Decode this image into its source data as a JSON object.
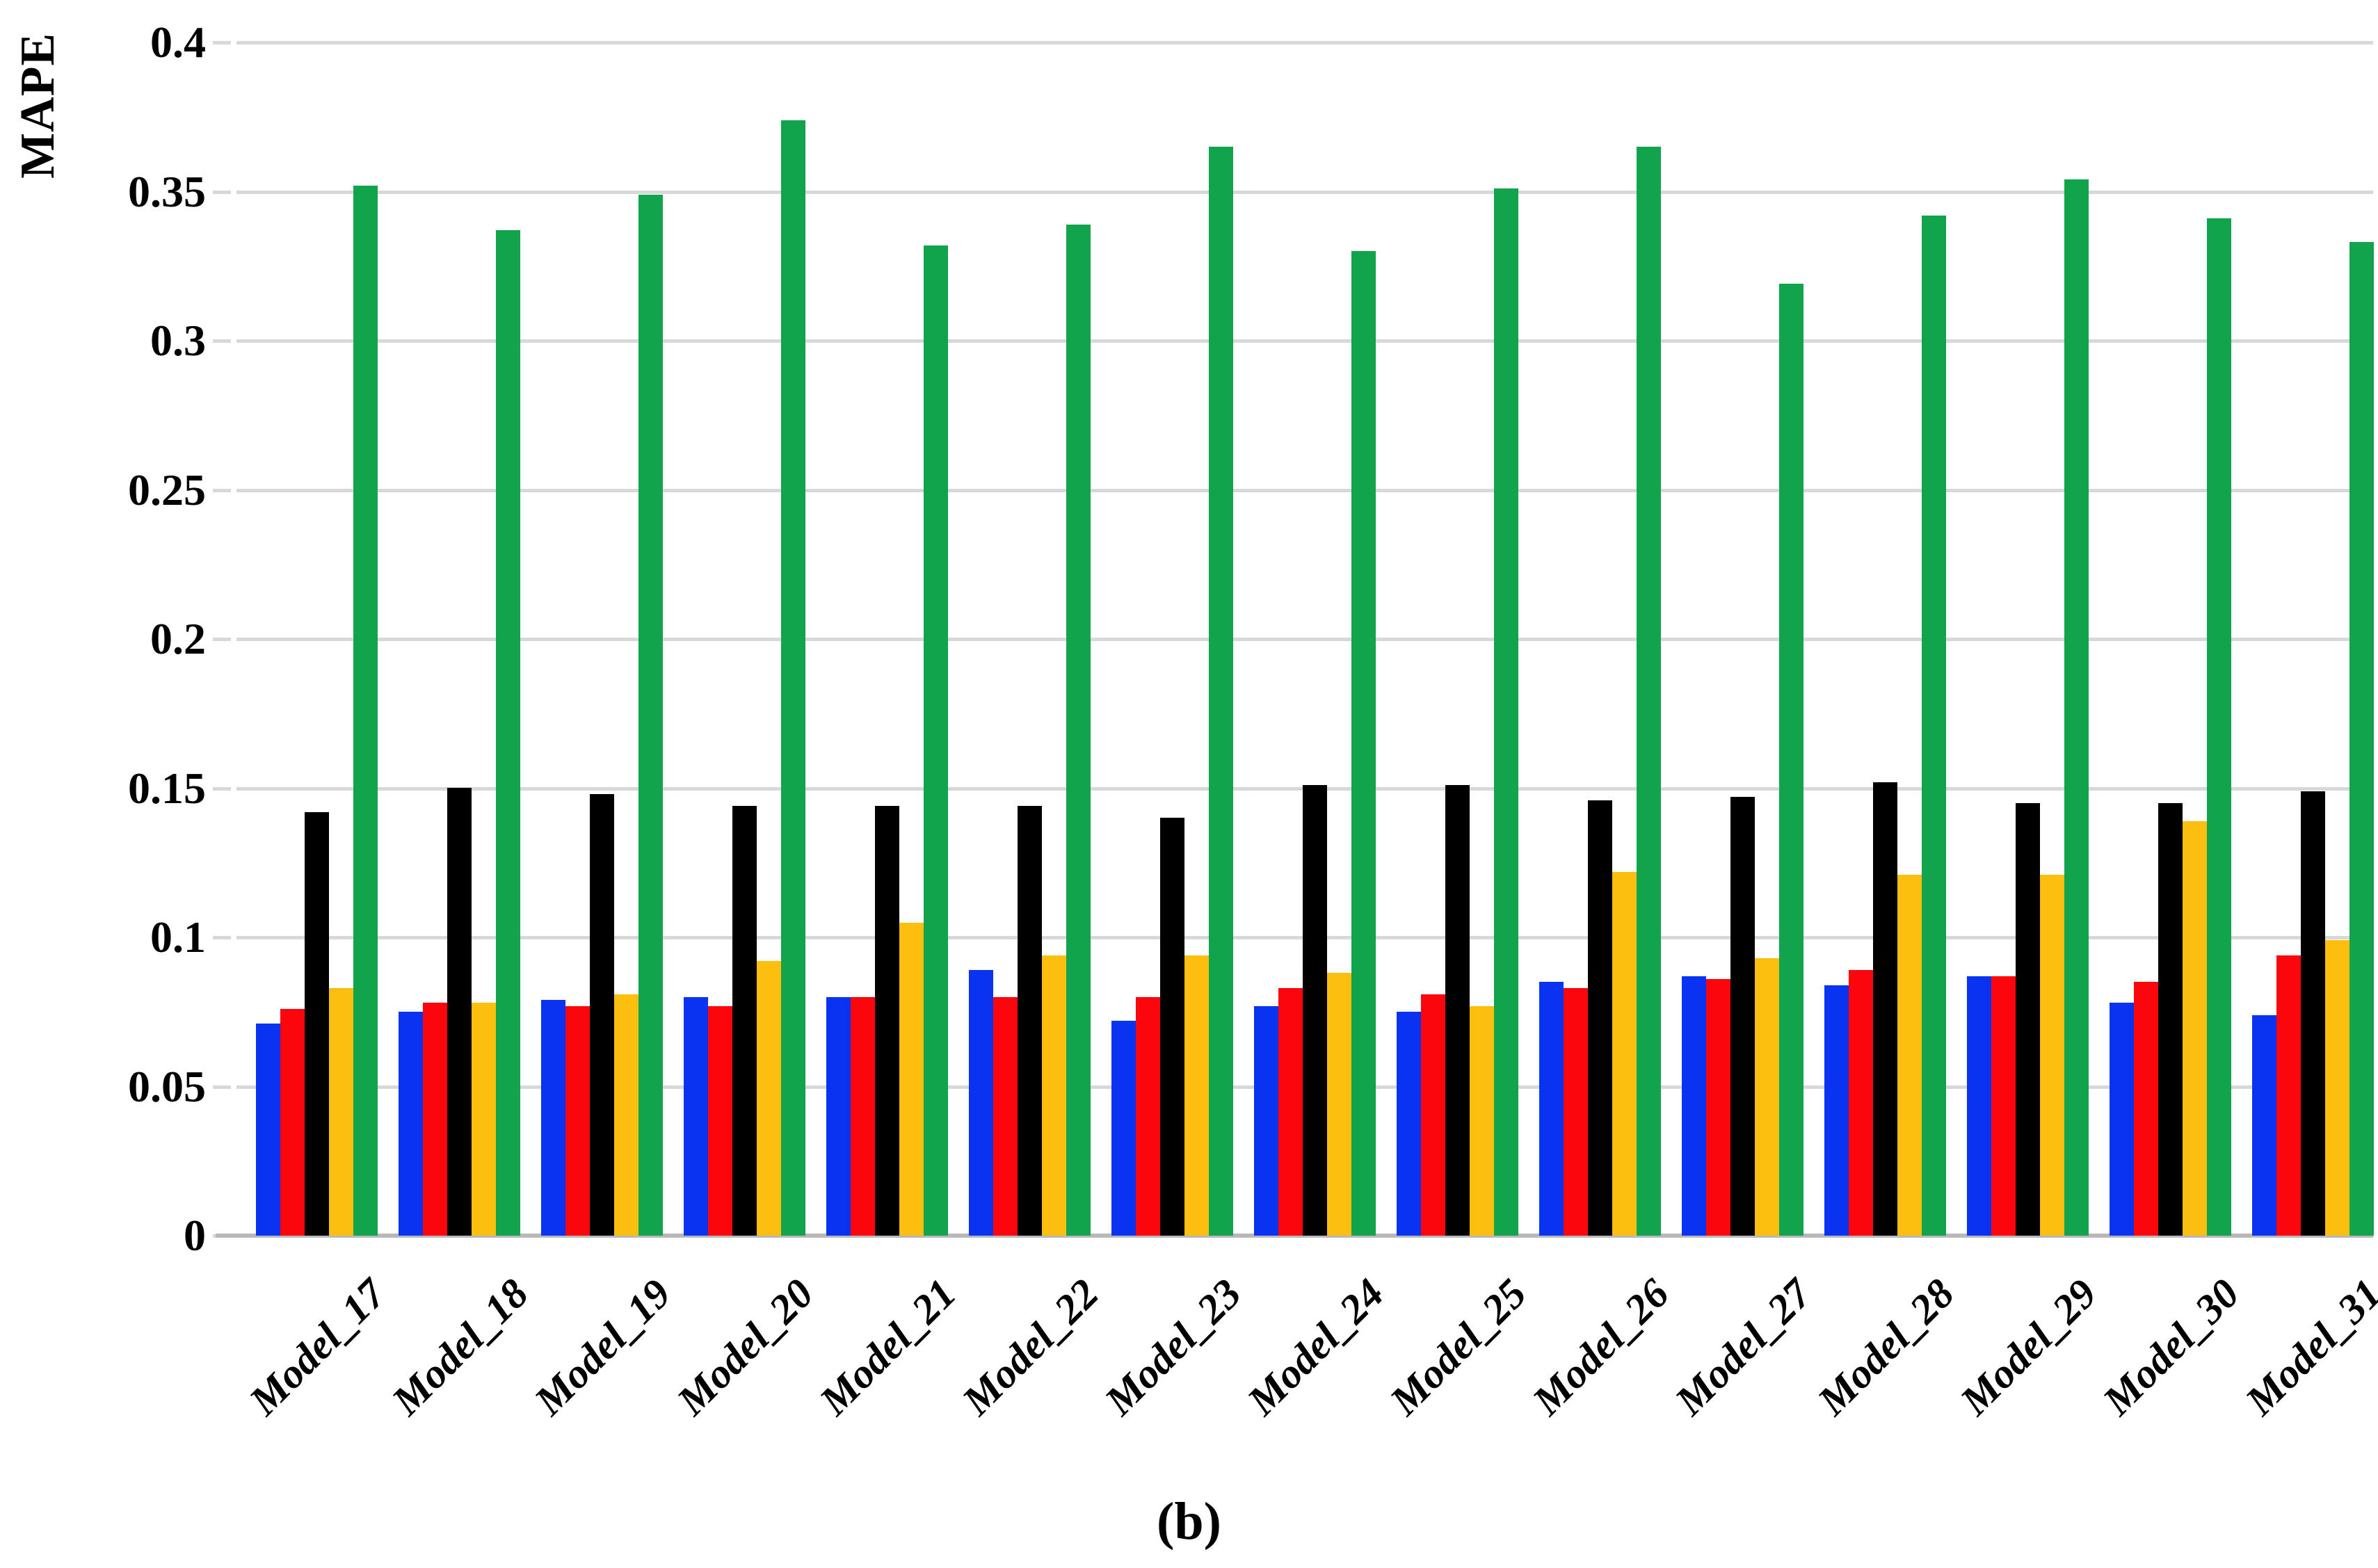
{
  "caption": "(b)",
  "colors": {
    "background": "#ffffff",
    "gridline": "#d8d8d8",
    "baseline": "#b8b8b8",
    "text": "#000000"
  },
  "chart_data": {
    "type": "bar",
    "title": "",
    "ylabel": "MAPE",
    "xlabel": "",
    "ylim": [
      0,
      0.4
    ],
    "yticks": [
      "0",
      "0.05",
      "0.1",
      "0.15",
      "0.2",
      "0.25",
      "0.3",
      "0.35",
      "0.4"
    ],
    "grid": true,
    "legend": "none",
    "categories": [
      "Model_17",
      "Model_18",
      "Model_19",
      "Model_20",
      "Model_21",
      "Model_22",
      "Model_23",
      "Model_24",
      "Model_25",
      "Model_26",
      "Model_27",
      "Model_28",
      "Model_29",
      "Model_30",
      "Model_31"
    ],
    "series": [
      {
        "name": "blue",
        "color": "#0933f0",
        "values": [
          0.071,
          0.075,
          0.079,
          0.08,
          0.08,
          0.089,
          0.072,
          0.077,
          0.075,
          0.085,
          0.087,
          0.084,
          0.087,
          0.078,
          0.074
        ]
      },
      {
        "name": "red",
        "color": "#fb060d",
        "values": [
          0.076,
          0.078,
          0.077,
          0.077,
          0.08,
          0.08,
          0.08,
          0.083,
          0.081,
          0.083,
          0.086,
          0.089,
          0.087,
          0.085,
          0.094
        ]
      },
      {
        "name": "black",
        "color": "#000000",
        "values": [
          0.142,
          0.15,
          0.148,
          0.144,
          0.144,
          0.144,
          0.14,
          0.151,
          0.151,
          0.146,
          0.147,
          0.152,
          0.145,
          0.145,
          0.149
        ]
      },
      {
        "name": "yellow",
        "color": "#fcbf10",
        "values": [
          0.083,
          0.078,
          0.081,
          0.092,
          0.105,
          0.094,
          0.094,
          0.088,
          0.077,
          0.122,
          0.093,
          0.121,
          0.121,
          0.139,
          0.099
        ]
      },
      {
        "name": "green",
        "color": "#11a44c",
        "values": [
          0.352,
          0.337,
          0.349,
          0.374,
          0.332,
          0.339,
          0.365,
          0.33,
          0.351,
          0.365,
          0.319,
          0.342,
          0.354,
          0.341,
          0.333
        ]
      }
    ]
  }
}
